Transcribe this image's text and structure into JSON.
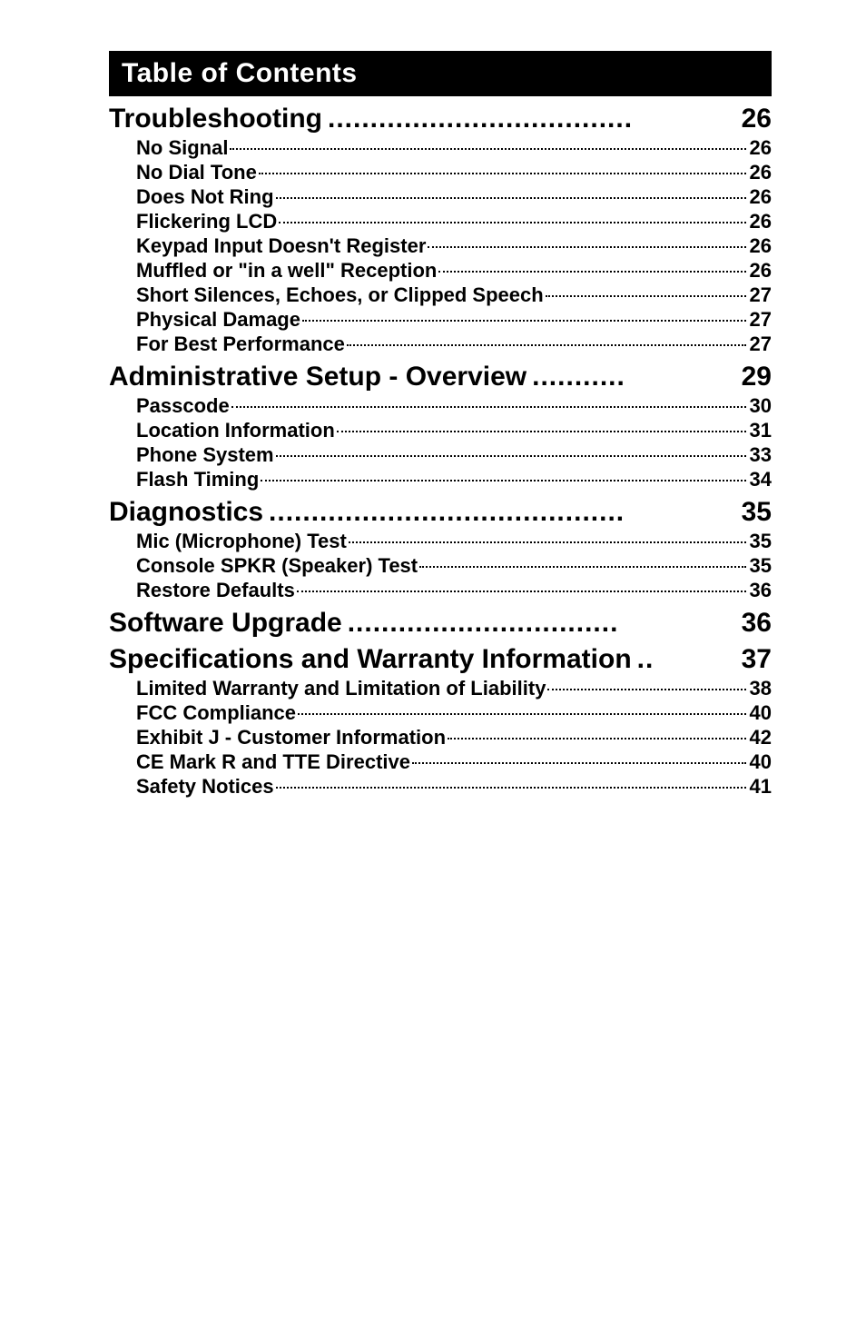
{
  "banner_title": "Table of Contents",
  "sections": [
    {
      "title": "Troubleshooting",
      "page": "26",
      "dots": "....................................",
      "entries": [
        {
          "label": "No Signal",
          "page": "26"
        },
        {
          "label": "No Dial Tone",
          "page": "26"
        },
        {
          "label": "Does Not Ring",
          "page": "26"
        },
        {
          "label": "Flickering LCD",
          "page": "26"
        },
        {
          "label": "Keypad Input Doesn't Register",
          "page": "26"
        },
        {
          "label": "Muffled or \"in a well\" Reception",
          "page": "26"
        },
        {
          "label": "Short Silences, Echoes, or Clipped Speech",
          "page": "27"
        },
        {
          "label": "Physical Damage",
          "page": "27"
        },
        {
          "label": "For Best Performance",
          "page": "27"
        }
      ]
    },
    {
      "title": "Administrative Setup - Overview",
      "page": "29",
      "dots": "...........",
      "entries": [
        {
          "label": "Passcode",
          "page": "30"
        },
        {
          "label": "Location Information",
          "page": "31"
        },
        {
          "label": "Phone System",
          "page": "33"
        },
        {
          "label": "Flash Timing",
          "page": "34"
        }
      ]
    },
    {
      "title": "Diagnostics",
      "page": "35",
      "dots": "..........................................",
      "entries": [
        {
          "label": "Mic (Microphone) Test",
          "page": "35"
        },
        {
          "label": "Console SPKR (Speaker) Test",
          "page": "35"
        },
        {
          "label": "Restore Defaults",
          "page": "36"
        }
      ]
    },
    {
      "title": "Software Upgrade",
      "page": "36",
      "dots": "................................",
      "entries": []
    },
    {
      "title": "Specifications and Warranty Information",
      "page": "37",
      "dots": "..",
      "entries": [
        {
          "label": "Limited Warranty and Limitation of Liability",
          "page": "38"
        },
        {
          "label": "FCC Compliance",
          "page": "40"
        },
        {
          "label": "Exhibit J - Customer Information",
          "page": "42"
        },
        {
          "label": "CE Mark R and TTE Directive",
          "page": "40"
        },
        {
          "label": "Safety Notices",
          "page": "41"
        }
      ]
    }
  ]
}
